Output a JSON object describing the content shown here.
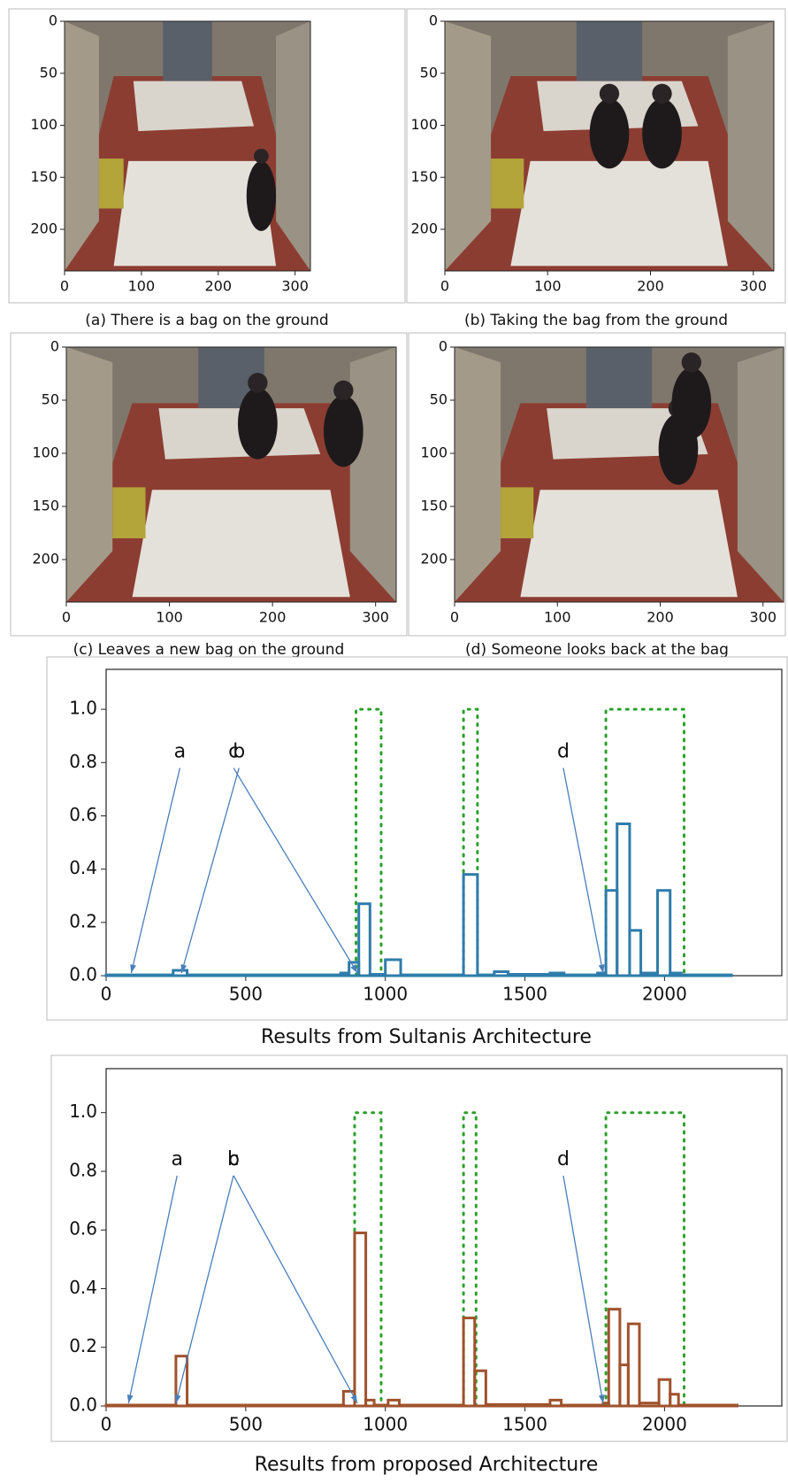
{
  "chart_data": [
    {
      "type": "image",
      "caption": "(a) There is a bag on the ground",
      "xlim": [
        0,
        320
      ],
      "xticks": [
        0,
        100,
        200,
        300
      ],
      "ylim": [
        240,
        0
      ],
      "yticks": [
        0,
        50,
        100,
        150,
        200
      ]
    },
    {
      "type": "image",
      "caption": "(b) Taking the bag from the ground",
      "xlim": [
        0,
        320
      ],
      "xticks": [
        0,
        100,
        200,
        300
      ],
      "ylim": [
        240,
        0
      ],
      "yticks": [
        0,
        50,
        100,
        150,
        200
      ]
    },
    {
      "type": "image",
      "caption": "(c) Leaves a new bag on the ground",
      "xlim": [
        0,
        320
      ],
      "xticks": [
        0,
        100,
        200,
        300
      ],
      "ylim": [
        240,
        0
      ],
      "yticks": [
        0,
        50,
        100,
        150,
        200
      ]
    },
    {
      "type": "image",
      "caption": "(d) Someone looks back at the bag",
      "xlim": [
        0,
        320
      ],
      "xticks": [
        0,
        100,
        200,
        300
      ],
      "ylim": [
        240,
        0
      ],
      "yticks": [
        0,
        50,
        100,
        150,
        200
      ]
    },
    {
      "type": "histogram",
      "xlabel": "Results from Sultanis Architecture",
      "color": "#2f7cab",
      "bins": [
        0,
        240,
        290,
        840,
        870,
        905,
        945,
        1000,
        1055,
        1280,
        1330,
        1390,
        1440,
        1590,
        1640,
        1760,
        1790,
        1830,
        1875,
        1915,
        1975,
        2020,
        2060,
        2240
      ],
      "values": [
        0.003,
        0.02,
        0.003,
        0.01,
        0.05,
        0.27,
        0.005,
        0.06,
        0.003,
        0.38,
        0.003,
        0.015,
        0.005,
        0.01,
        0.003,
        0.01,
        0.32,
        0.57,
        0.17,
        0.01,
        0.32,
        0.01,
        0.003
      ],
      "xlim": [
        0,
        2420
      ],
      "xticks": [
        0,
        500,
        1000,
        1500,
        2000
      ],
      "ylim": [
        0,
        1.15
      ],
      "yticks": [
        {
          "value": 0,
          "label": "0.0"
        },
        0.2,
        0.4,
        0.6,
        0.8,
        {
          "value": 1,
          "label": "1.0"
        }
      ],
      "region_color": "#2ca02c",
      "regions": [
        {
          "start": 895,
          "end": 985,
          "value": 1
        },
        {
          "start": 1280,
          "end": 1330,
          "value": 1
        },
        {
          "start": 1790,
          "end": 2070,
          "value": 1
        }
      ],
      "annotations": [
        {
          "text": "a",
          "x": 90
        },
        {
          "text": "b",
          "x": 270
        },
        {
          "text": "c",
          "x": 900
        },
        {
          "text": "d",
          "x": 1780
        }
      ]
    },
    {
      "type": "histogram",
      "xlabel": "Results from proposed Architecture",
      "color": "#a0522d",
      "bins": [
        0,
        250,
        290,
        850,
        890,
        930,
        960,
        1010,
        1050,
        1280,
        1320,
        1360,
        1590,
        1630,
        1780,
        1800,
        1840,
        1870,
        1910,
        1980,
        2020,
        2050,
        2260
      ],
      "values": [
        0.003,
        0.17,
        0.003,
        0.05,
        0.59,
        0.02,
        0.003,
        0.02,
        0.003,
        0.3,
        0.12,
        0.005,
        0.02,
        0.003,
        0.01,
        0.33,
        0.14,
        0.28,
        0.01,
        0.09,
        0.04,
        0.003
      ],
      "xlim": [
        0,
        2420
      ],
      "xticks": [
        0,
        500,
        1000,
        1500,
        2000
      ],
      "ylim": [
        0,
        1.15
      ],
      "yticks": [
        {
          "value": 0,
          "label": "0.0"
        },
        0.2,
        0.4,
        0.6,
        0.8,
        {
          "value": 1,
          "label": "1.0"
        }
      ],
      "region_color": "#2ca02c",
      "regions": [
        {
          "start": 890,
          "end": 985,
          "value": 1
        },
        {
          "start": 1280,
          "end": 1325,
          "value": 1
        },
        {
          "start": 1790,
          "end": 2070,
          "value": 1
        }
      ],
      "annotations": [
        {
          "text": "a",
          "x": 80
        },
        {
          "text": "b",
          "x": 250
        },
        {
          "text": "c",
          "x": 900
        },
        {
          "text": "d",
          "x": 1780
        }
      ]
    }
  ]
}
